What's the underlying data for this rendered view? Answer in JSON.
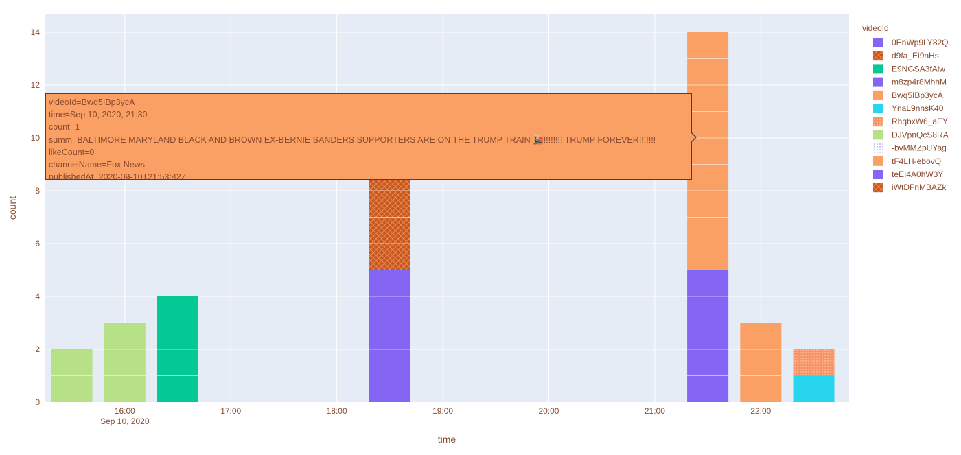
{
  "chart_data": {
    "type": "bar",
    "barmode": "stack",
    "xlabel": "time",
    "ylabel": "count",
    "ylim": [
      0,
      14.7
    ],
    "xlim": [
      "2020-09-10 15:15",
      "2020-09-10 22:50"
    ],
    "x_ticks": [
      {
        "t": "2020-09-10 16:00",
        "label": "16:00",
        "sublabel": "Sep 10, 2020"
      },
      {
        "t": "2020-09-10 17:00",
        "label": "17:00",
        "sublabel": ""
      },
      {
        "t": "2020-09-10 18:00",
        "label": "18:00",
        "sublabel": ""
      },
      {
        "t": "2020-09-10 19:00",
        "label": "19:00",
        "sublabel": ""
      },
      {
        "t": "2020-09-10 20:00",
        "label": "20:00",
        "sublabel": ""
      },
      {
        "t": "2020-09-10 21:00",
        "label": "21:00",
        "sublabel": ""
      },
      {
        "t": "2020-09-10 22:00",
        "label": "22:00",
        "sublabel": ""
      }
    ],
    "y_ticks": [
      0,
      2,
      4,
      6,
      8,
      10,
      12,
      14
    ],
    "grid": true,
    "legend_title": "videoId",
    "legend_position": "right",
    "series": [
      {
        "name": "0EnWp9LY82Q",
        "color": "#8465f4",
        "pattern": "solid",
        "points": [
          {
            "t": "2020-09-10 18:30",
            "count": 1
          }
        ]
      },
      {
        "name": "d9fa_Ei9nHs",
        "color": "#c8581e",
        "pattern": "crosshatch",
        "points": []
      },
      {
        "name": "E9NGSA3fAlw",
        "color": "#05c994",
        "pattern": "solid",
        "points": [
          {
            "t": "2020-09-10 16:30",
            "count": 4
          }
        ]
      },
      {
        "name": "m8zp4r8MhhM",
        "color": "#8465f4",
        "pattern": "solid",
        "points": [
          {
            "t": "2020-09-10 18:30",
            "count": 4
          }
        ]
      },
      {
        "name": "Bwq5IBp3ycA",
        "color": "#fba064",
        "pattern": "solid",
        "points": []
      },
      {
        "name": "YnaL9nhsK40",
        "color": "#27d5ef",
        "pattern": "solid",
        "points": [
          {
            "t": "2020-09-10 22:30",
            "count": 1
          }
        ]
      },
      {
        "name": "RhqbxW6_aEY",
        "color": "#f7956a",
        "pattern": "dots",
        "points": [
          {
            "t": "2020-09-10 22:30",
            "count": 1
          }
        ]
      },
      {
        "name": "DJVpnQcS8RA",
        "color": "#b7e187",
        "pattern": "solid",
        "points": [
          {
            "t": "2020-09-10 15:30",
            "count": 2
          },
          {
            "t": "2020-09-10 16:00",
            "count": 3
          }
        ]
      },
      {
        "name": "-bvMMZpUYag",
        "color": "#c2b8f6",
        "pattern": "dots",
        "points": []
      },
      {
        "name": "tF4LH-ebovQ",
        "color": "#fba064",
        "pattern": "solid",
        "points": []
      },
      {
        "name": "teEI4A0hW3Y",
        "color": "#8465f4",
        "pattern": "solid",
        "points": [
          {
            "t": "2020-09-10 21:30",
            "count": 5
          }
        ]
      },
      {
        "name": "iWtDFnMBAZk",
        "color": "#c8581e",
        "pattern": "crosshatch",
        "points": [
          {
            "t": "2020-09-10 18:30",
            "count": 5
          }
        ]
      }
    ],
    "extra_bars": [
      {
        "t": "2020-09-10 21:30",
        "base": 5,
        "count": 9,
        "color": "#fba064",
        "pattern": "solid",
        "segments": [
          7,
          8,
          9,
          10,
          11,
          12,
          13
        ]
      },
      {
        "t": "2020-09-10 22:00",
        "base": 0,
        "count": 3,
        "color": "#fba064",
        "pattern": "solid",
        "segments": [
          1,
          2
        ]
      },
      {
        "t": "2020-09-10 18:30",
        "base": 10,
        "count": 0.5,
        "color": "#c8581e",
        "pattern": "crosshatch",
        "segments": []
      }
    ]
  },
  "tooltip": {
    "lines": [
      "videoId=Bwq5IBp3ycA",
      "time=Sep 10, 2020, 21:30",
      "count=1",
      "summ=BALTIMORE MARYLAND BLACK AND BROWN EX-BERNIE SANDERS SUPPORTERS ARE ON THE TRUMP TRAIN 🚂!!!!!!!! TRUMP FOREVER!!!!!!!",
      "likeCount=0",
      "channelName=Fox News",
      "publishedAt=2020-09-10T21:53:42Z"
    ]
  }
}
